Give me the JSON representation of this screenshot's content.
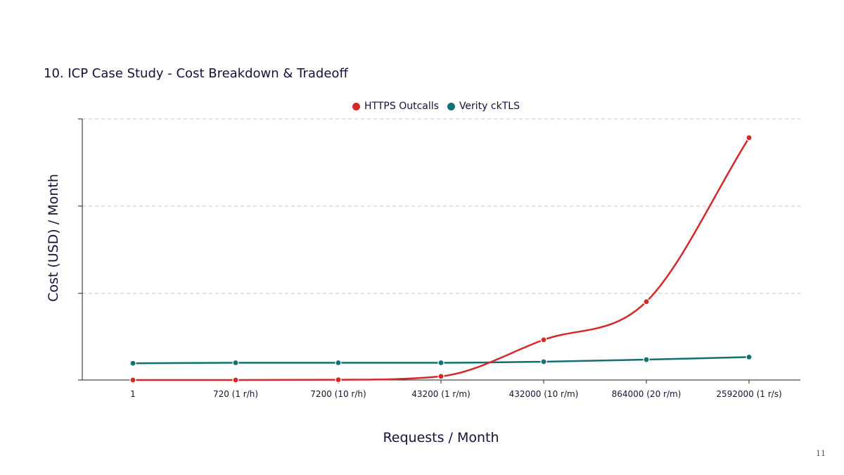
{
  "slide": {
    "title": "10. ICP Case Study - Cost Breakdown & Tradeoff",
    "page_number": "11"
  },
  "colors": {
    "https_outcalls": "#d62828",
    "verity_cktls": "#136f73",
    "grid": "#c8c8c8",
    "axis": "#222222",
    "text": "#14123a"
  },
  "chart_data": {
    "type": "line",
    "title": "",
    "xlabel": "Requests / Month",
    "ylabel": "Cost (USD) / Month",
    "categories": [
      "1",
      "720 (1 r/h)",
      "7200 (10 r/h)",
      "43200 (1 r/m)",
      "432000 (10 r/m)",
      "864000 (20 r/m)",
      "2592000 (1 r/s)"
    ],
    "series": [
      {
        "name": "HTTPS Outcalls",
        "color": "#d62828",
        "values": [
          0,
          0,
          0.05,
          0.7,
          7.7,
          15,
          46.4
        ]
      },
      {
        "name": "Verity ckTLS",
        "color": "#136f73",
        "values": [
          3.2,
          3.3,
          3.3,
          3.3,
          3.5,
          3.9,
          4.4
        ]
      }
    ],
    "ylim": [
      0,
      50
    ],
    "y_gridlines": [
      16.6,
      33.3,
      50
    ],
    "y_tick_labels_shown": false,
    "grid": "horizontal dashed",
    "legend": "top-center",
    "smooth": true
  }
}
